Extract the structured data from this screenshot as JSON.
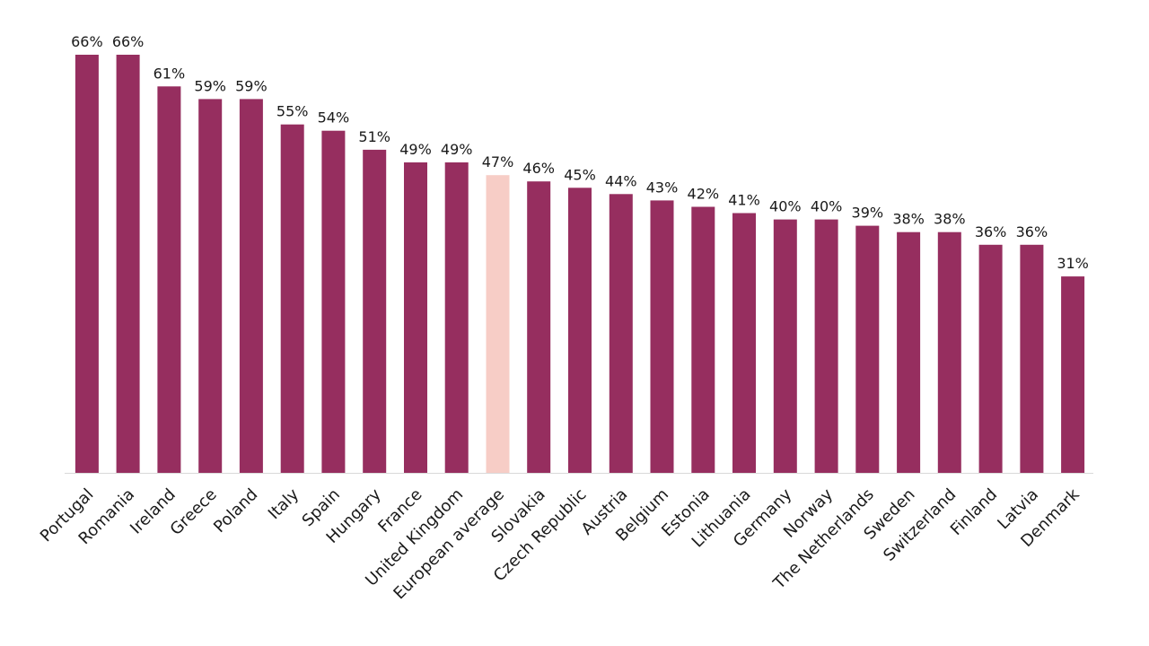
{
  "chart_data": {
    "type": "bar",
    "title": "",
    "xlabel": "",
    "ylabel": "",
    "ylim": [
      0,
      66
    ],
    "grid": false,
    "legend": "none",
    "value_suffix": "%",
    "colors": {
      "bar": "#962e5f",
      "highlight": "#f7cdc6",
      "baseline": "#d9d9d9"
    },
    "highlight_category": "European average",
    "categories": [
      "Portugal",
      "Romania",
      "Ireland",
      "Greece",
      "Poland",
      "Italy",
      "Spain",
      "Hungary",
      "France",
      "United Kingdom",
      "European average",
      "Slovakia",
      "Czech Republic",
      "Austria",
      "Belgium",
      "Estonia",
      "Lithuania",
      "Germany",
      "Norway",
      "The Netherlands",
      "Sweden",
      "Switzerland",
      "Finland",
      "Latvia",
      "Denmark"
    ],
    "values": [
      66,
      66,
      61,
      59,
      59,
      55,
      54,
      51,
      49,
      49,
      47,
      46,
      45,
      44,
      43,
      42,
      41,
      40,
      40,
      39,
      38,
      38,
      36,
      36,
      31
    ]
  }
}
